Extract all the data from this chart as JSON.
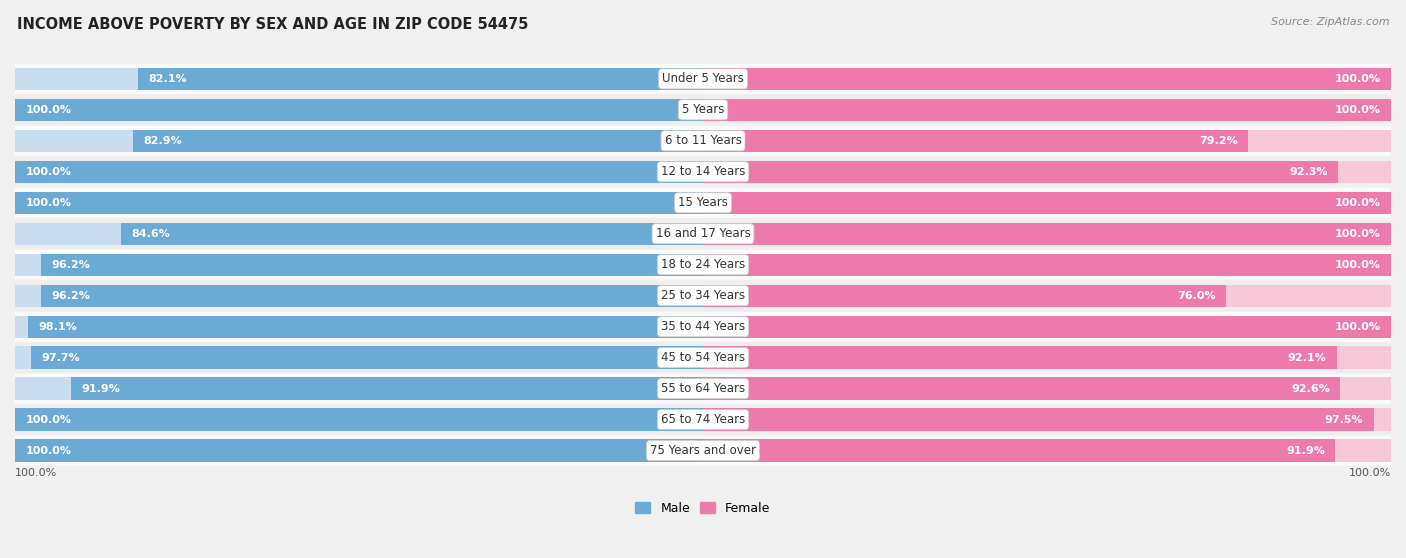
{
  "title": "INCOME ABOVE POVERTY BY SEX AND AGE IN ZIP CODE 54475",
  "source": "Source: ZipAtlas.com",
  "categories": [
    "Under 5 Years",
    "5 Years",
    "6 to 11 Years",
    "12 to 14 Years",
    "15 Years",
    "16 and 17 Years",
    "18 to 24 Years",
    "25 to 34 Years",
    "35 to 44 Years",
    "45 to 54 Years",
    "55 to 64 Years",
    "65 to 74 Years",
    "75 Years and over"
  ],
  "male": [
    82.1,
    100.0,
    82.9,
    100.0,
    100.0,
    84.6,
    96.2,
    96.2,
    98.1,
    97.7,
    91.9,
    100.0,
    100.0
  ],
  "female": [
    100.0,
    100.0,
    79.2,
    92.3,
    100.0,
    100.0,
    100.0,
    76.0,
    100.0,
    92.1,
    92.6,
    97.5,
    91.9
  ],
  "male_color_dark": "#6aaad4",
  "female_color_dark": "#ee7aab",
  "male_color_light": "#c8ddf0",
  "female_color_light": "#f9c8d8",
  "bg_color": "#f0f0f0",
  "row_bg_light": "#fafafa",
  "row_bg_dark": "#eeeeee",
  "max_val": 100.0,
  "legend_male": "Male",
  "legend_female": "Female"
}
